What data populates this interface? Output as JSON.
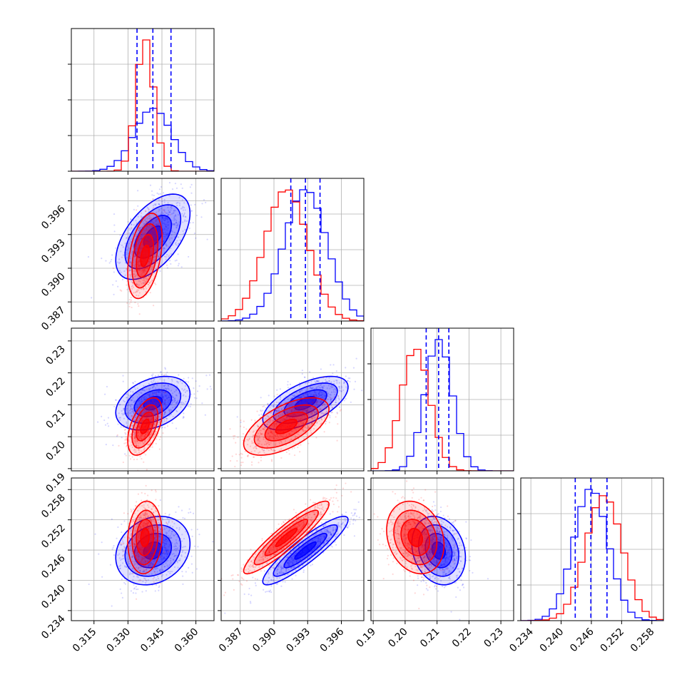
{
  "chart_data": {
    "type": "corner",
    "description_free": true,
    "series": [
      {
        "color": "#0000ff",
        "mean": [
          0.341,
          0.3928,
          0.2105,
          0.2459
        ],
        "sd": [
          0.0082,
          0.0019,
          0.0042,
          0.0034
        ],
        "corr": {
          "0_1": 0.55,
          "0_2": 0.35,
          "0_3": 0.2,
          "1_2": 0.6,
          "1_3": 0.9,
          "2_3": -0.2
        },
        "quantiles": {
          "0": [
            0.334,
            0.341,
            0.349
          ],
          "1": [
            0.3915,
            0.3928,
            0.3941
          ],
          "2": [
            0.2066,
            0.2105,
            0.2137
          ],
          "3": [
            0.2428,
            0.2459,
            0.2491
          ]
        }
      },
      {
        "color": "#ff0000",
        "mean": [
          0.3375,
          0.3911,
          0.2032,
          0.2485
        ],
        "sd": [
          0.0038,
          0.0019,
          0.0045,
          0.0036
        ],
        "corr": {
          "0_1": 0.4,
          "0_2": 0.5,
          "0_3": 0.1,
          "1_2": 0.6,
          "1_3": 0.92,
          "2_3": -0.2
        }
      }
    ],
    "params": [
      {
        "range": [
          0.305,
          0.368
        ],
        "ticks": [
          "0.315",
          "0.330",
          "0.345",
          "0.360"
        ],
        "tick_values": [
          0.315,
          0.33,
          0.345,
          0.36
        ]
      },
      {
        "range": [
          0.3853,
          0.398
        ],
        "ticks": [
          "0.387",
          "0.390",
          "0.393",
          "0.396"
        ],
        "tick_values": [
          0.387,
          0.39,
          0.393,
          0.396
        ]
      },
      {
        "range": [
          0.1893,
          0.234
        ],
        "ticks": [
          "0.19",
          "0.20",
          "0.21",
          "0.22",
          "0.23"
        ],
        "tick_values": [
          0.19,
          0.2,
          0.21,
          0.22,
          0.23
        ]
      },
      {
        "range": [
          0.232,
          0.2603
        ],
        "ticks": [
          "0.234",
          "0.240",
          "0.246",
          "0.252",
          "0.258"
        ],
        "tick_values": [
          0.234,
          0.24,
          0.246,
          0.252,
          0.258
        ]
      }
    ],
    "grid": true
  }
}
